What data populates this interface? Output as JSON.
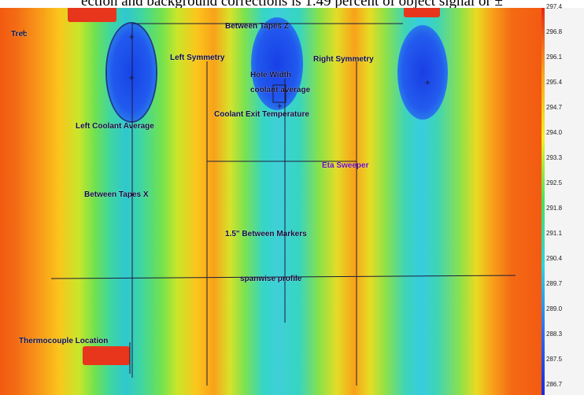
{
  "caption": "ection and background corrections is 1.49 percent of object signal or ±",
  "labels": {
    "trec": "Trec",
    "between_tapes_z": "Between Tapes Z",
    "left_symmetry": "Left Symmetry",
    "right_symmetry": "Right Symmetry",
    "hole_width": "Hole Width",
    "coolant_average": "coolant average",
    "coolant_exit_temperature": "Coolant Exit Temperature",
    "left_coolant_average": "Left Coolant Average",
    "eta_sweeper": "Eta Sweeper",
    "between_tapes_x": "Between Tapes X",
    "between_markers": "1.5\" Between Markers",
    "spanwise_profile": "spanwise profile",
    "thermocouple_location": "Thermocouple Location"
  },
  "colorbar": {
    "ticks": [
      "297.4",
      "296.8",
      "296.1",
      "295.4",
      "294.7",
      "294.0",
      "293.3",
      "292.5",
      "291.8",
      "291.1",
      "290.4",
      "289.7",
      "289.0",
      "288.3",
      "287.5",
      "286.7"
    ],
    "colors": {
      "hot": "#e52818",
      "warm": "#f7a51c",
      "mid": "#f3f01e",
      "cool": "#2ad5df",
      "cold": "#1a2bd8"
    }
  }
}
